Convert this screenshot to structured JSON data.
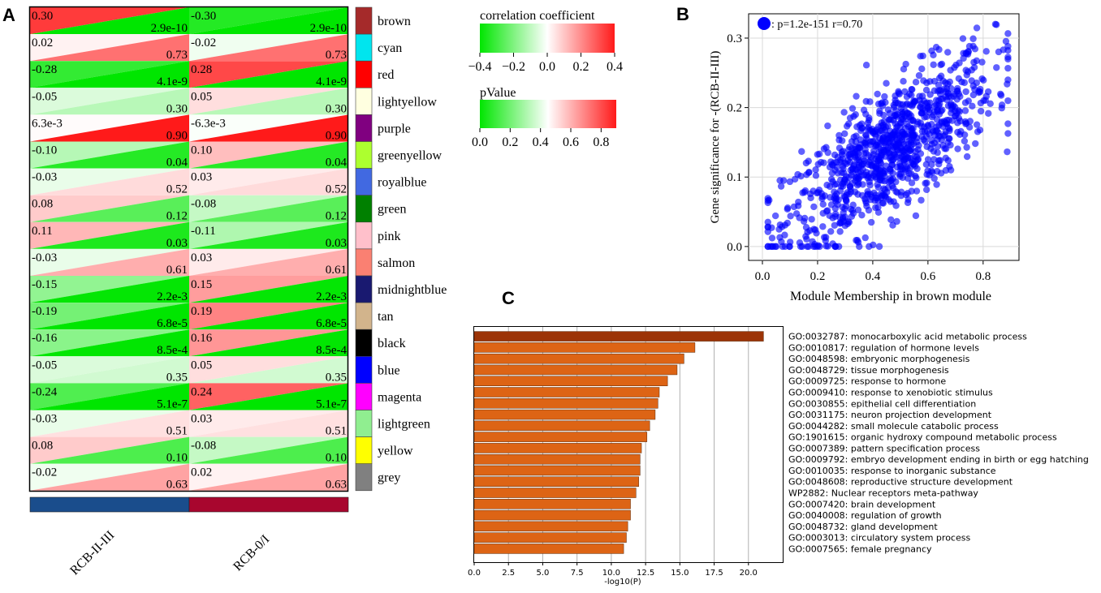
{
  "chart_data": [
    {
      "panel": "A",
      "type": "heatmap",
      "columns": [
        "RCB-II-III",
        "RCB-0/I"
      ],
      "column_bar_colors": [
        "#1a4d8c",
        "#a8062e"
      ],
      "rows": [
        {
          "module": "brown",
          "color": "#a52a2a",
          "cells": [
            {
              "r": "0.30",
              "p": "2.9e-10"
            },
            {
              "r": "-0.30",
              "p": "2.9e-10"
            }
          ]
        },
        {
          "module": "cyan",
          "color": "#00e5ee",
          "cells": [
            {
              "r": "0.02",
              "p": "0.73"
            },
            {
              "r": "-0.02",
              "p": "0.73"
            }
          ]
        },
        {
          "module": "red",
          "color": "#ff0000",
          "cells": [
            {
              "r": "-0.28",
              "p": "4.1e-9"
            },
            {
              "r": "0.28",
              "p": "4.1e-9"
            }
          ]
        },
        {
          "module": "lightyellow",
          "color": "#ffffe0",
          "cells": [
            {
              "r": "-0.05",
              "p": "0.30"
            },
            {
              "r": "0.05",
              "p": "0.30"
            }
          ]
        },
        {
          "module": "purple",
          "color": "#800080",
          "cells": [
            {
              "r": "6.3e-3",
              "p": "0.90"
            },
            {
              "r": "-6.3e-3",
              "p": "0.90"
            }
          ]
        },
        {
          "module": "greenyellow",
          "color": "#adff2f",
          "cells": [
            {
              "r": "-0.10",
              "p": "0.04"
            },
            {
              "r": "0.10",
              "p": "0.04"
            }
          ]
        },
        {
          "module": "royalblue",
          "color": "#4169e1",
          "cells": [
            {
              "r": "-0.03",
              "p": "0.52"
            },
            {
              "r": "0.03",
              "p": "0.52"
            }
          ]
        },
        {
          "module": "green",
          "color": "#008000",
          "cells": [
            {
              "r": "0.08",
              "p": "0.12"
            },
            {
              "r": "-0.08",
              "p": "0.12"
            }
          ]
        },
        {
          "module": "pink",
          "color": "#ffc0cb",
          "cells": [
            {
              "r": "0.11",
              "p": "0.03"
            },
            {
              "r": "-0.11",
              "p": "0.03"
            }
          ]
        },
        {
          "module": "salmon",
          "color": "#fa8072",
          "cells": [
            {
              "r": "-0.03",
              "p": "0.61"
            },
            {
              "r": "0.03",
              "p": "0.61"
            }
          ]
        },
        {
          "module": "midnightblue",
          "color": "#191970",
          "cells": [
            {
              "r": "-0.15",
              "p": "2.2e-3"
            },
            {
              "r": "0.15",
              "p": "2.2e-3"
            }
          ]
        },
        {
          "module": "tan",
          "color": "#d2b48c",
          "cells": [
            {
              "r": "-0.19",
              "p": "6.8e-5"
            },
            {
              "r": "0.19",
              "p": "6.8e-5"
            }
          ]
        },
        {
          "module": "black",
          "color": "#000000",
          "cells": [
            {
              "r": "-0.16",
              "p": "8.5e-4"
            },
            {
              "r": "0.16",
              "p": "8.5e-4"
            }
          ]
        },
        {
          "module": "blue",
          "color": "#0000ff",
          "cells": [
            {
              "r": "-0.05",
              "p": "0.35"
            },
            {
              "r": "0.05",
              "p": "0.35"
            }
          ]
        },
        {
          "module": "magenta",
          "color": "#ff00ff",
          "cells": [
            {
              "r": "-0.24",
              "p": "5.1e-7"
            },
            {
              "r": "0.24",
              "p": "5.1e-7"
            }
          ]
        },
        {
          "module": "lightgreen",
          "color": "#90ee90",
          "cells": [
            {
              "r": "-0.03",
              "p": "0.51"
            },
            {
              "r": "0.03",
              "p": "0.51"
            }
          ]
        },
        {
          "module": "yellow",
          "color": "#ffff00",
          "cells": [
            {
              "r": "0.08",
              "p": "0.10"
            },
            {
              "r": "-0.08",
              "p": "0.10"
            }
          ]
        },
        {
          "module": "grey",
          "color": "#808080",
          "cells": [
            {
              "r": "-0.02",
              "p": "0.63"
            },
            {
              "r": "0.02",
              "p": "0.63"
            }
          ]
        }
      ],
      "legends": [
        {
          "title": "correlation coefficient",
          "range": [
            -0.4,
            0.4
          ],
          "ticks": [
            "−0.4",
            "−0.2",
            "0.0",
            "0.2",
            "0.4"
          ],
          "tick_values": [
            -0.4,
            -0.2,
            0.0,
            0.2,
            0.4
          ]
        },
        {
          "title": "pValue",
          "range": [
            0,
            0.9
          ],
          "ticks": [
            "0.0",
            "0.2",
            "0.4",
            "0.6",
            "0.8"
          ],
          "tick_values": [
            0.0,
            0.2,
            0.4,
            0.6,
            0.8
          ]
        }
      ]
    },
    {
      "panel": "B",
      "type": "scatter",
      "legend": ": p=1.2e-151 r=0.70",
      "xlabel": "Module Membership in brown module",
      "ylabel": "Gene significance for -(RCB-II-III)",
      "xlim": [
        -0.05,
        0.93
      ],
      "ylim": [
        -0.02,
        0.335
      ],
      "xticks": [
        0.0,
        0.2,
        0.4,
        0.6,
        0.8
      ],
      "yticks": [
        0.0,
        0.1,
        0.2,
        0.3
      ],
      "xtick_labels": [
        "0.0",
        "0.2",
        "0.4",
        "0.6",
        "0.8"
      ],
      "ytick_labels": [
        "0.0",
        "0.1",
        "0.2",
        "0.3"
      ],
      "point_color": "#0000ff",
      "n_points": 1000,
      "r": 0.7,
      "x_range": [
        0.02,
        0.89
      ],
      "y_range": [
        0.0,
        0.32
      ],
      "grid": true
    },
    {
      "panel": "C",
      "type": "bar",
      "orientation": "horizontal",
      "xlabel": "-log10(P)",
      "xlim": [
        0,
        22.5
      ],
      "xticks": [
        0.0,
        2.5,
        5.0,
        7.5,
        10.0,
        12.5,
        15.0,
        17.5,
        20.0
      ],
      "xtick_labels": [
        "0.0",
        "2.5",
        "5.0",
        "7.5",
        "10.0",
        "12.5",
        "15.0",
        "17.5",
        "20.0"
      ],
      "top_bar_color": "#9c3407",
      "bar_color": "#dd6415",
      "categories": [
        "GO:0032787: monocarboxylic acid metabolic process",
        "GO:0010817: regulation of hormone levels",
        "GO:0048598: embryonic morphogenesis",
        "GO:0048729: tissue morphogenesis",
        "GO:0009725: response to hormone",
        "GO:0009410: response to xenobiotic stimulus",
        "GO:0030855: epithelial cell differentiation",
        "GO:0031175: neuron projection development",
        "GO:0044282: small molecule catabolic process",
        "GO:1901615: organic hydroxy compound metabolic process",
        "GO:0007389: pattern specification process",
        "GO:0009792: embryo development ending in birth or egg hatching",
        "GO:0010035: response to inorganic substance",
        "GO:0048608: reproductive structure development",
        "WP2882: Nuclear receptors meta-pathway",
        "GO:0007420: brain development",
        "GO:0040008: regulation of growth",
        "GO:0048732: gland development",
        "GO:0003013: circulatory system process",
        "GO:0007565: female pregnancy"
      ],
      "values": [
        21.1,
        16.1,
        15.3,
        14.8,
        14.1,
        13.5,
        13.4,
        13.2,
        12.8,
        12.6,
        12.2,
        12.1,
        12.1,
        12.0,
        11.8,
        11.4,
        11.4,
        11.2,
        11.1,
        10.9
      ]
    }
  ],
  "panel_labels": [
    "A",
    "B",
    "C"
  ]
}
